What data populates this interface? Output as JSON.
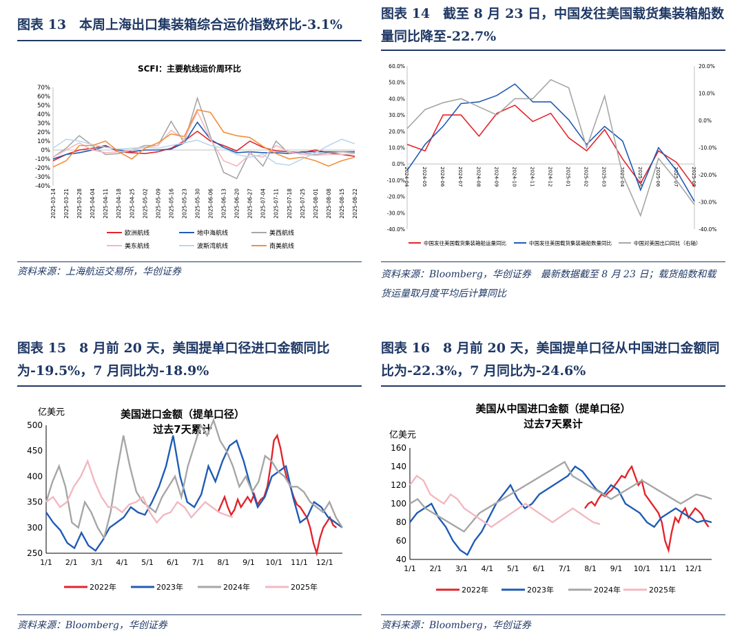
{
  "figures": {
    "f13": {
      "title": "图表 13　本周上海出口集装箱综合运价指数环比-3.1%",
      "source": "资料来源：上海航运交易所，华创证券"
    },
    "f14": {
      "title": "图表 14　截至 8 月 23 日，中国发往美国载货集装箱船数量同比降至-22.7%",
      "source": "资料来源：Bloomberg，华创证券　最新数据截至 8 月 23 日；载货船数和载货运量取月度平均后计算同比"
    },
    "f15": {
      "title": "图表 15　8 月前 20 天，美国提单口径进口金额同比为-19.5%，7 月同比为-18.9%",
      "source": "资料来源：Bloomberg，华创证券"
    },
    "f16": {
      "title": "图表 16　8 月前 20 天，美国提单口径从中国进口金额同比为-22.3%，7 月同比为-24.6%",
      "source": "资料来源：Bloomberg，华创证券"
    }
  },
  "chart_data": [
    {
      "type": "line",
      "title": "SCFI：主要航线运价周环比",
      "y_ticks": [
        "70%",
        "60%",
        "50%",
        "40%",
        "30%",
        "20%",
        "10%",
        "0%",
        "-10%",
        "-20%",
        "-30%",
        "-40%"
      ],
      "ylim": [
        -40,
        70
      ],
      "x": [
        "2025-03-14",
        "2025-03-21",
        "2025-03-28",
        "2025-04-04",
        "2025-04-11",
        "2025-04-18",
        "2025-04-25",
        "2025-05-02",
        "2025-05-09",
        "2025-05-16",
        "2025-05-23",
        "2025-05-30",
        "2025-06-06",
        "2025-06-13",
        "2025-06-20",
        "2025-06-27",
        "2025-07-04",
        "2025-07-11",
        "2025-07-18",
        "2025-07-25",
        "2025-08-01",
        "2025-08-08",
        "2025-08-15",
        "2025-08-22"
      ],
      "series": [
        {
          "name": "欧洲航线",
          "color": "#e3242b",
          "values": [
            -12,
            -5,
            0,
            2,
            5,
            -2,
            -3,
            -4,
            -2,
            2,
            10,
            21,
            10,
            5,
            -1,
            10,
            3,
            -1,
            -2,
            -3,
            0,
            -3,
            -5,
            -7
          ]
        },
        {
          "name": "地中海航线",
          "color": "#1f5bb4",
          "values": [
            -10,
            -5,
            -3,
            0,
            4,
            0,
            -2,
            0,
            0,
            1,
            8,
            31,
            12,
            3,
            -3,
            -2,
            -3,
            -3,
            -4,
            -2,
            -2,
            -2,
            -2,
            -2
          ]
        },
        {
          "name": "美西航线",
          "color": "#a6a6a6",
          "values": [
            -8,
            2,
            16,
            5,
            -5,
            -4,
            0,
            5,
            5,
            32,
            8,
            58,
            15,
            -25,
            -32,
            -2,
            -18,
            10,
            -4,
            -3,
            -5,
            -3,
            -2,
            -3
          ]
        },
        {
          "name": "美东航线",
          "color": "#f2b8c0",
          "values": [
            -8,
            0,
            8,
            0,
            -3,
            -2,
            0,
            3,
            5,
            22,
            12,
            43,
            12,
            -12,
            -18,
            -5,
            -8,
            5,
            -2,
            -5,
            -6,
            -5,
            -5,
            -4
          ]
        },
        {
          "name": "波斯湾航线",
          "color": "#b9d7ee",
          "values": [
            2,
            12,
            10,
            6,
            3,
            1,
            2,
            3,
            2,
            5,
            8,
            11,
            5,
            2,
            -5,
            -8,
            -5,
            -15,
            -17,
            -10,
            -3,
            5,
            12,
            7
          ]
        },
        {
          "name": "南美航线",
          "color": "#f28f3b",
          "values": [
            -19,
            -12,
            5,
            5,
            10,
            -2,
            -10,
            2,
            8,
            18,
            15,
            45,
            42,
            20,
            16,
            14,
            4,
            -4,
            -10,
            -8,
            -12,
            -18,
            -12,
            -8
          ]
        }
      ]
    },
    {
      "type": "line",
      "y_ticks_left": [
        "60.0%",
        "50.0%",
        "40.0%",
        "30.0%",
        "20.0%",
        "10.0%",
        "0.0%",
        "-10.0%",
        "-20.0%",
        "-30.0%",
        "-40.0%"
      ],
      "y_ticks_right": [
        "20.0%",
        "10.0%",
        "0.0%",
        "-10.0%",
        "-20.0%",
        "-30.0%",
        "-40.0%"
      ],
      "ylim_left": [
        -40,
        60
      ],
      "ylim_right": [
        -40,
        20
      ],
      "x": [
        "2024-04",
        "2024-05",
        "2024-06",
        "2024-07",
        "2024-08",
        "2024-09",
        "2024-10",
        "2024-11",
        "2024-12",
        "2025-01",
        "2025-02",
        "2025-03",
        "2025-04",
        "2025-05",
        "2025-06",
        "2025-07",
        "2025-08"
      ],
      "series": [
        {
          "name": "中国发往美国载货集装箱船运量同比",
          "color": "#e3242b",
          "axis": "left",
          "values": [
            12,
            8,
            30,
            30,
            17,
            31,
            36,
            26,
            31,
            16,
            8,
            21,
            3,
            -12,
            8,
            1,
            -14
          ]
        },
        {
          "name": "中国发往美国载货集装箱船数量同比",
          "color": "#1f5bb4",
          "axis": "left",
          "values": [
            -4,
            12,
            23,
            37,
            38,
            42,
            49,
            38,
            38,
            27,
            12,
            23,
            14,
            -16,
            10,
            -4,
            -23
          ]
        },
        {
          "name": "中国对美国出口同比（右轴）",
          "color": "#a6a6a6",
          "axis": "right",
          "values": [
            -3,
            4,
            6.5,
            8,
            5,
            2,
            8,
            8,
            15,
            12,
            -10,
            9,
            -20,
            -35,
            -14,
            -22,
            -31
          ]
        }
      ]
    },
    {
      "type": "line",
      "title": "美国进口金额（提单口径）\n过去7天累计",
      "ylabel": "亿美元",
      "y_ticks": [
        "500",
        "450",
        "400",
        "350",
        "300",
        "250"
      ],
      "ylim": [
        250,
        500
      ],
      "x_ticks": [
        "1/1",
        "2/1",
        "3/1",
        "4/1",
        "5/1",
        "6/1",
        "7/1",
        "8/1",
        "9/1",
        "10/1",
        "11/1",
        "12/1"
      ],
      "series": [
        {
          "name": "2022年",
          "color": "#e3242b",
          "values": [
            330,
            345,
            360,
            340,
            325,
            335,
            355,
            340,
            350,
            360,
            350,
            365,
            345,
            355,
            360,
            380,
            420,
            470,
            480,
            455,
            420,
            395,
            380,
            360,
            345,
            340,
            330,
            320,
            300,
            270,
            250,
            280,
            300,
            310,
            320,
            305,
            300
          ]
        },
        {
          "name": "2023年",
          "color": "#1f5bb4",
          "values": [
            330,
            310,
            295,
            270,
            260,
            290,
            265,
            255,
            275,
            300,
            310,
            320,
            340,
            330,
            325,
            350,
            380,
            420,
            480,
            400,
            350,
            340,
            365,
            420,
            390,
            430,
            460,
            470,
            430,
            380,
            340,
            360,
            400,
            410,
            420,
            360,
            310,
            320,
            350,
            340,
            320,
            310,
            300
          ]
        },
        {
          "name": "2024年",
          "color": "#a6a6a6",
          "values": [
            350,
            390,
            420,
            380,
            310,
            300,
            350,
            330,
            300,
            280,
            330,
            410,
            480,
            420,
            370,
            350,
            340,
            330,
            360,
            380,
            400,
            360,
            420,
            460,
            500,
            480,
            510,
            470,
            450,
            420,
            380,
            400,
            370,
            390,
            440,
            430,
            410,
            400,
            380,
            380,
            370,
            350,
            340,
            330,
            350,
            320,
            300
          ]
        },
        {
          "name": "2025年",
          "color": "#f2b8c0",
          "values": [
            350,
            360,
            340,
            350,
            380,
            400,
            430,
            390,
            360,
            340,
            340,
            330,
            345,
            350,
            360,
            330,
            310,
            325,
            330,
            350,
            340,
            320,
            335,
            350,
            340,
            330,
            325,
            320
          ]
        }
      ]
    },
    {
      "type": "line",
      "title": "美国从中国进口金额（提单口径）\n过去7天累计",
      "ylabel": "亿美元",
      "y_ticks": [
        "160",
        "140",
        "120",
        "100",
        "80",
        "60",
        "40"
      ],
      "ylim": [
        40,
        160
      ],
      "x_ticks": [
        "1/1",
        "2/1",
        "3/1",
        "4/1",
        "5/1",
        "6/1",
        "7/1",
        "8/1",
        "9/1",
        "10/1",
        "11/1",
        "12/1"
      ],
      "series": [
        {
          "name": "2022年",
          "color": "#e3242b",
          "values": [
            95,
            100,
            102,
            98,
            105,
            110,
            108,
            112,
            115,
            120,
            125,
            130,
            128,
            135,
            140,
            130,
            120,
            125,
            110,
            105,
            100,
            95,
            90,
            80,
            60,
            50,
            70,
            85,
            80,
            90,
            95,
            85,
            90,
            95,
            92,
            88,
            80,
            75
          ]
        },
        {
          "name": "2023年",
          "color": "#1f5bb4",
          "values": [
            80,
            90,
            95,
            100,
            85,
            75,
            60,
            50,
            45,
            60,
            70,
            85,
            100,
            110,
            120,
            105,
            95,
            100,
            110,
            115,
            120,
            125,
            130,
            140,
            135,
            125,
            115,
            110,
            120,
            115,
            100,
            95,
            90,
            80,
            75,
            85,
            90,
            95,
            90,
            85,
            80,
            82,
            80
          ]
        },
        {
          "name": "2024年",
          "color": "#a6a6a6",
          "values": [
            100,
            105,
            95,
            90,
            85,
            80,
            75,
            70,
            80,
            90,
            95,
            100,
            105,
            110,
            115,
            120,
            125,
            130,
            135,
            140,
            145,
            130,
            125,
            120,
            115,
            110,
            105,
            110,
            115,
            120,
            125,
            120,
            115,
            110,
            105,
            100,
            105,
            110,
            108,
            105
          ]
        },
        {
          "name": "2025年",
          "color": "#f2b8c0",
          "values": [
            120,
            130,
            125,
            110,
            105,
            100,
            110,
            105,
            95,
            90,
            85,
            80,
            75,
            80,
            85,
            90,
            95,
            100,
            95,
            90,
            85,
            80,
            85,
            90,
            95,
            90,
            85,
            80,
            78
          ]
        }
      ]
    }
  ]
}
